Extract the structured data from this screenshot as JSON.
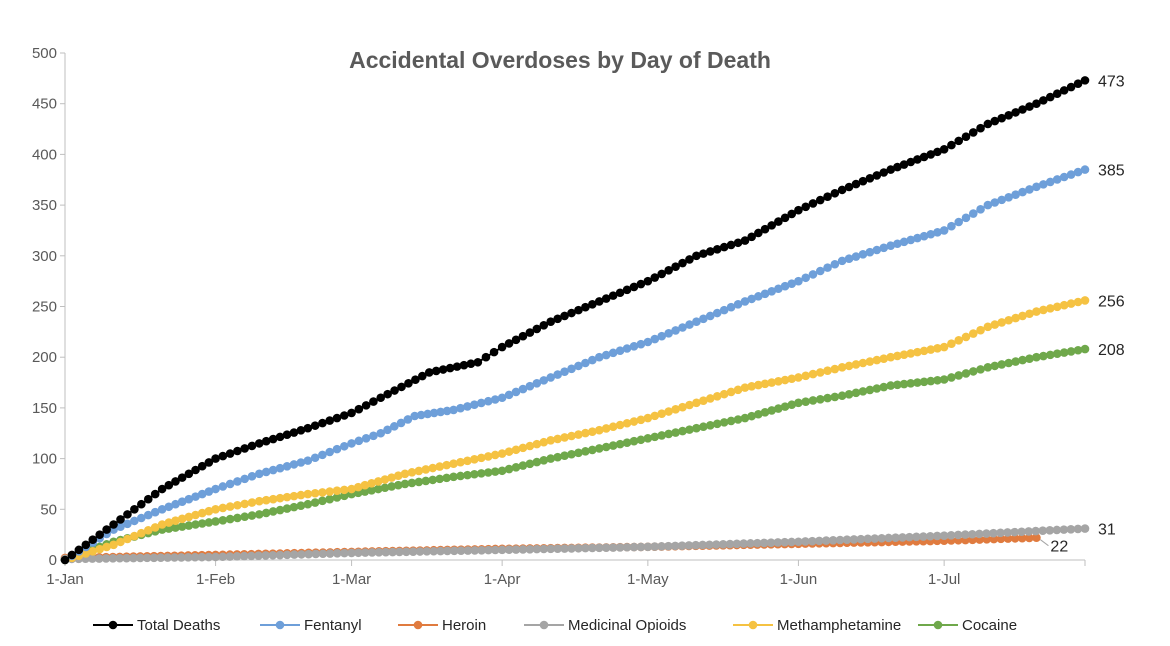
{
  "chart_data": {
    "type": "line",
    "title": "Accidental Overdoses by Day of Death",
    "xlabel": "",
    "ylabel": "",
    "ylim": [
      0,
      500
    ],
    "yticks": [
      0,
      50,
      100,
      150,
      200,
      250,
      300,
      350,
      400,
      450,
      500
    ],
    "x_unit": "day of year",
    "xlim": [
      0,
      210
    ],
    "xticks": [
      {
        "label": "1-Jan",
        "day": 0
      },
      {
        "label": "1-Feb",
        "day": 31
      },
      {
        "label": "1-Mar",
        "day": 59
      },
      {
        "label": "1-Apr",
        "day": 90
      },
      {
        "label": "1-May",
        "day": 120
      },
      {
        "label": "1-Jun",
        "day": 151
      },
      {
        "label": "1-Jul",
        "day": 181
      }
    ],
    "grid": false,
    "legend_position": "bottom",
    "series": [
      {
        "name": "Total Deaths",
        "color": "#000000",
        "end_label": "473",
        "x": [
          0,
          10,
          20,
          31,
          40,
          50,
          59,
          65,
          75,
          85,
          90,
          100,
          110,
          120,
          130,
          140,
          151,
          160,
          170,
          181,
          190,
          200,
          210
        ],
        "y": [
          0,
          35,
          70,
          100,
          115,
          130,
          145,
          160,
          185,
          195,
          210,
          235,
          255,
          275,
          300,
          315,
          345,
          365,
          385,
          405,
          430,
          450,
          473
        ]
      },
      {
        "name": "Fentanyl",
        "color": "#6e9fd9",
        "end_label": "385",
        "x": [
          0,
          10,
          20,
          31,
          40,
          50,
          59,
          65,
          72,
          80,
          90,
          100,
          110,
          120,
          130,
          140,
          151,
          160,
          170,
          181,
          190,
          200,
          210
        ],
        "y": [
          0,
          30,
          50,
          70,
          85,
          98,
          115,
          125,
          142,
          148,
          160,
          180,
          200,
          215,
          235,
          255,
          275,
          295,
          310,
          325,
          350,
          368,
          385
        ]
      },
      {
        "name": "Heroin",
        "color": "#e07b3f",
        "end_label": "22",
        "x": [
          0,
          31,
          59,
          90,
          120,
          151,
          181,
          200
        ],
        "y": [
          2,
          5,
          8,
          11,
          13,
          16,
          19,
          22
        ]
      },
      {
        "name": "Medicinal Opioids",
        "color": "#a5a5a5",
        "end_label": "31",
        "x": [
          0,
          31,
          59,
          90,
          120,
          151,
          181,
          210
        ],
        "y": [
          1,
          3,
          7,
          10,
          13,
          18,
          24,
          31
        ]
      },
      {
        "name": "Methamphetamine",
        "color": "#f5c242",
        "end_label": "256",
        "x": [
          0,
          10,
          20,
          31,
          40,
          50,
          59,
          70,
          80,
          90,
          100,
          110,
          120,
          130,
          140,
          151,
          160,
          170,
          181,
          190,
          200,
          210
        ],
        "y": [
          0,
          15,
          35,
          50,
          58,
          65,
          70,
          85,
          95,
          105,
          118,
          128,
          140,
          155,
          170,
          180,
          190,
          200,
          210,
          230,
          245,
          256
        ]
      },
      {
        "name": "Cocaine",
        "color": "#6fa84b",
        "end_label": "208",
        "x": [
          0,
          10,
          20,
          31,
          40,
          50,
          59,
          70,
          80,
          90,
          100,
          110,
          120,
          130,
          140,
          151,
          160,
          170,
          181,
          190,
          200,
          210
        ],
        "y": [
          0,
          18,
          30,
          38,
          45,
          55,
          65,
          75,
          82,
          88,
          100,
          110,
          120,
          130,
          140,
          155,
          162,
          172,
          178,
          190,
          200,
          208
        ]
      }
    ]
  }
}
